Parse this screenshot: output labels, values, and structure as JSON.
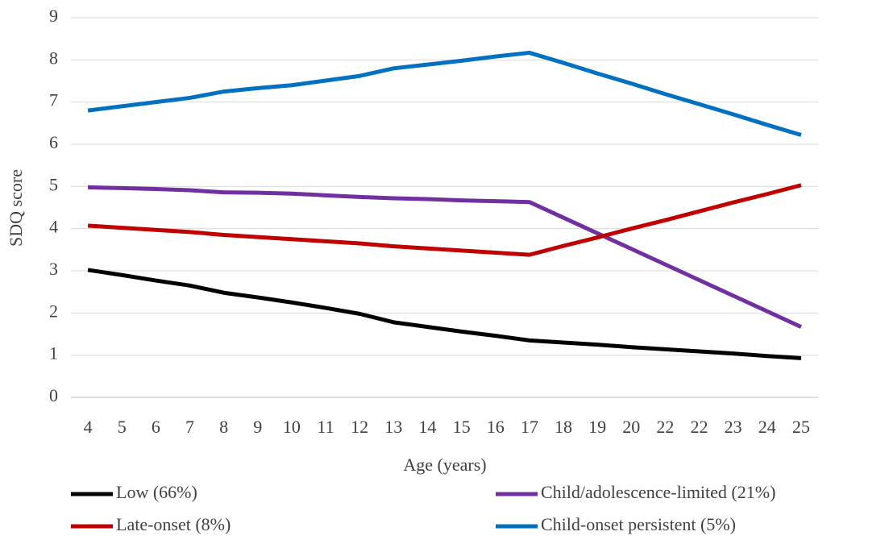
{
  "chart_data": {
    "type": "line",
    "x_label": "Age (years)",
    "y_label": "SDQ score",
    "categories": [
      "4",
      "5",
      "6",
      "7",
      "8",
      "9",
      "10",
      "11",
      "12",
      "13",
      "14",
      "15",
      "16",
      "17",
      "18",
      "19",
      "20",
      "22",
      "22",
      "23",
      "24",
      "25"
    ],
    "series": [
      {
        "name": "Low (66%)",
        "color": "#000000",
        "values": [
          3.02,
          2.9,
          2.77,
          2.65,
          2.48,
          2.37,
          2.25,
          2.12,
          1.98,
          1.78,
          1.67,
          1.56,
          1.46,
          1.35,
          1.3,
          1.25,
          1.19,
          1.14,
          1.09,
          1.04,
          0.98,
          0.93
        ]
      },
      {
        "name": "Child/adolescence-limited (21%)",
        "color": "#7030a0",
        "values": [
          4.98,
          4.96,
          4.94,
          4.91,
          4.86,
          4.85,
          4.83,
          4.79,
          4.75,
          4.72,
          4.7,
          4.67,
          4.65,
          4.63,
          4.26,
          3.89,
          3.52,
          3.15,
          2.78,
          2.41,
          2.04,
          1.67
        ]
      },
      {
        "name": "Late-onset (8%)",
        "color": "#c00000",
        "values": [
          4.07,
          4.02,
          3.97,
          3.92,
          3.85,
          3.8,
          3.75,
          3.7,
          3.65,
          3.58,
          3.53,
          3.48,
          3.43,
          3.38,
          3.59,
          3.79,
          4.0,
          4.2,
          4.41,
          4.62,
          4.82,
          5.03
        ]
      },
      {
        "name": "Child-onset persistent (5%)",
        "color": "#0070c0",
        "values": [
          6.8,
          6.9,
          7.0,
          7.1,
          7.25,
          7.33,
          7.4,
          7.51,
          7.62,
          7.8,
          7.89,
          7.98,
          8.08,
          8.17,
          7.93,
          7.68,
          7.44,
          7.19,
          6.95,
          6.71,
          6.46,
          6.22
        ]
      }
    ],
    "ylim": [
      0,
      9
    ],
    "yticks": [
      0,
      1,
      2,
      3,
      4,
      5,
      6,
      7,
      8,
      9
    ],
    "grid": true
  }
}
